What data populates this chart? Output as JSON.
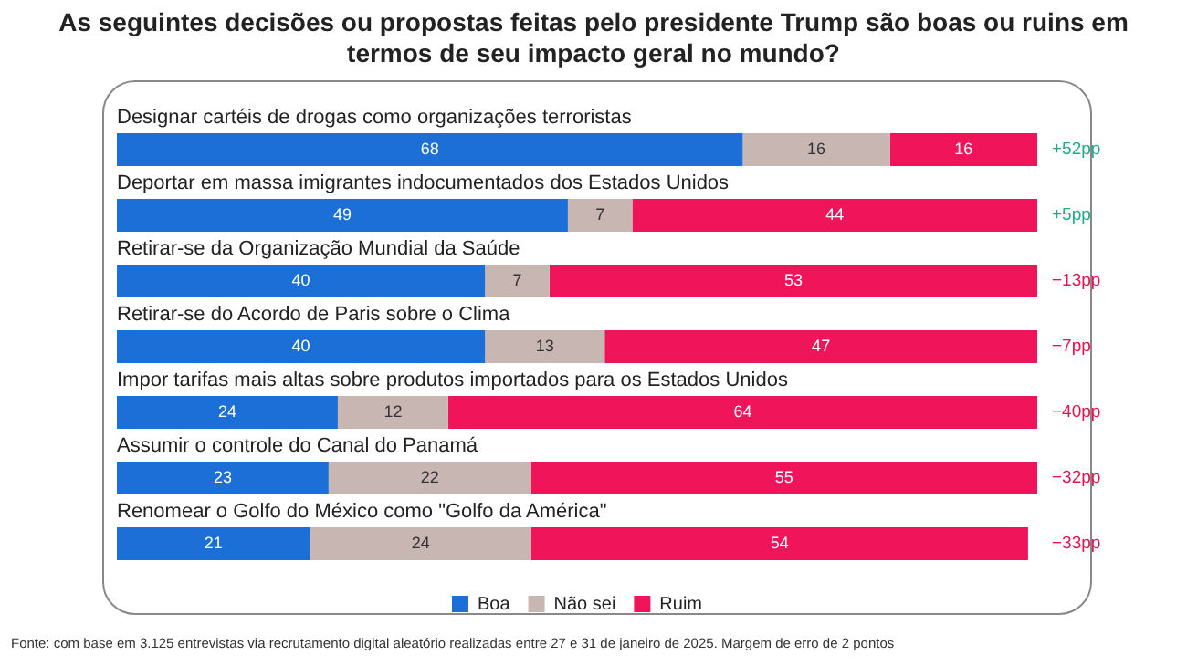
{
  "chart_data": {
    "type": "bar",
    "orientation": "horizontal",
    "stacked": true,
    "title": "As seguintes decisões ou propostas feitas pelo presidente Trump são boas ou ruins em termos de seu impacto geral no mundo?",
    "categories": [
      "Designar cartéis de drogas como organizações terroristas",
      "Deportar em massa imigrantes indocumentados dos Estados Unidos",
      "Retirar-se da Organização Mundial da Saúde",
      "Retirar-se do Acordo de Paris sobre o Clima",
      "Impor tarifas mais altas sobre produtos importados para os Estados Unidos",
      "Assumir o controle do Canal do Panamá",
      "Renomear o Golfo do México como \"Golfo da América\""
    ],
    "series": [
      {
        "name": "Boa",
        "color": "#1b6fd6",
        "values": [
          68,
          49,
          40,
          40,
          24,
          23,
          21
        ]
      },
      {
        "name": "Não sei",
        "color": "#c8b6b2",
        "values": [
          16,
          7,
          7,
          13,
          12,
          22,
          24
        ]
      },
      {
        "name": "Ruim",
        "color": "#f0155b",
        "values": [
          16,
          44,
          53,
          47,
          64,
          55,
          54
        ]
      }
    ],
    "xlim": [
      0,
      100
    ],
    "legend": "bottom",
    "data_labels": true,
    "annotations": [
      "+52pp",
      "+5pp",
      "−13pp",
      "−7pp",
      "−40pp",
      "−32pp",
      "−33pp",
      "Fonte: com base em 3.125 entrevistas via recrutamento digital aleatório realizadas entre 27 e 31 de janeiro de 2025. Margem de erro de 2 pontos"
    ]
  }
}
